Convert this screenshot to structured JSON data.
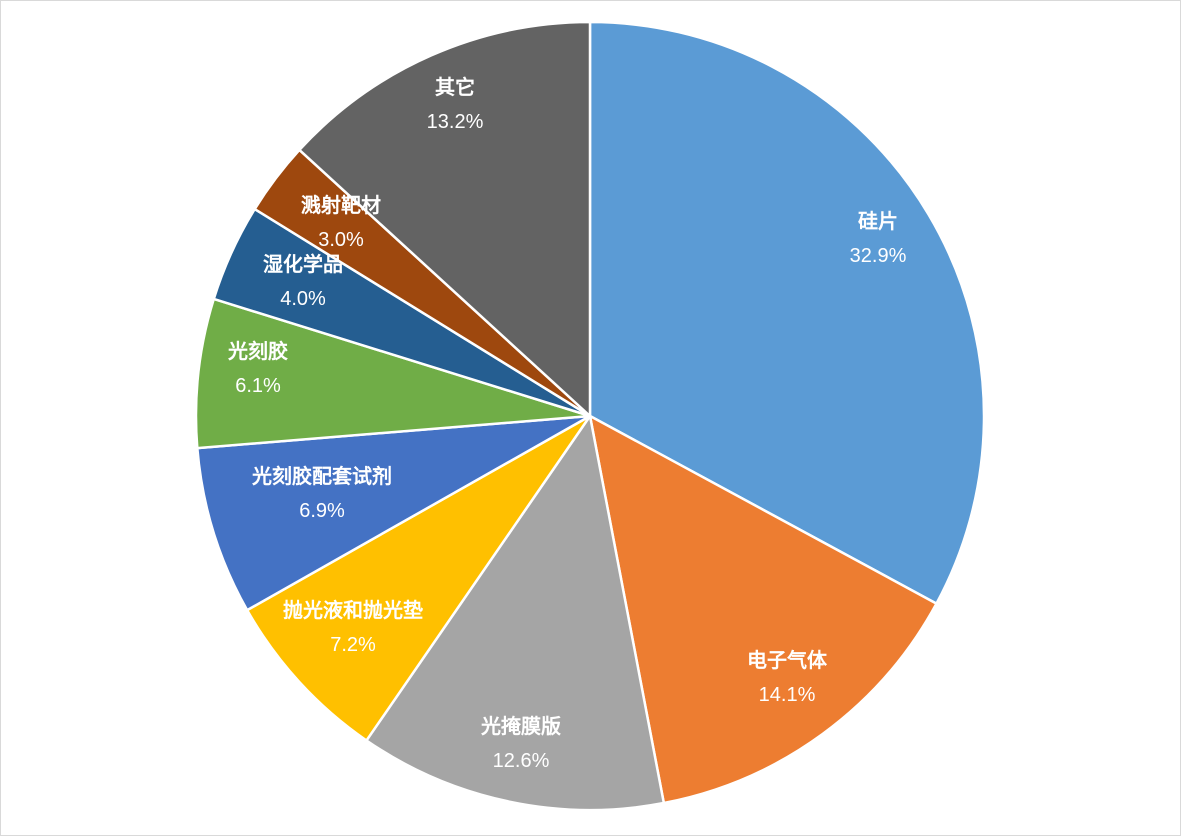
{
  "chart_data": {
    "type": "pie",
    "start_angle_deg": 0,
    "direction": "clockwise",
    "slices": [
      {
        "label": "硅片",
        "value": 32.9,
        "value_label": "32.9%",
        "color": "#5b9bd5"
      },
      {
        "label": "电子气体",
        "value": 14.1,
        "value_label": "14.1%",
        "color": "#ed7d31"
      },
      {
        "label": "光掩膜版",
        "value": 12.6,
        "value_label": "12.6%",
        "color": "#a5a5a5"
      },
      {
        "label": "抛光液和抛光垫",
        "value": 7.2,
        "value_label": "7.2%",
        "color": "#ffc000"
      },
      {
        "label": "光刻胶配套试剂",
        "value": 6.9,
        "value_label": "6.9%",
        "color": "#4472c4"
      },
      {
        "label": "光刻胶",
        "value": 6.1,
        "value_label": "6.1%",
        "color": "#70ad47"
      },
      {
        "label": "湿化学品",
        "value": 4.0,
        "value_label": "4.0%",
        "color": "#255e91"
      },
      {
        "label": "溅射靶材",
        "value": 3.0,
        "value_label": "3.0%",
        "color": "#9e480e"
      },
      {
        "label": "其它",
        "value": 13.2,
        "value_label": "13.2%",
        "color": "#636363"
      }
    ]
  }
}
